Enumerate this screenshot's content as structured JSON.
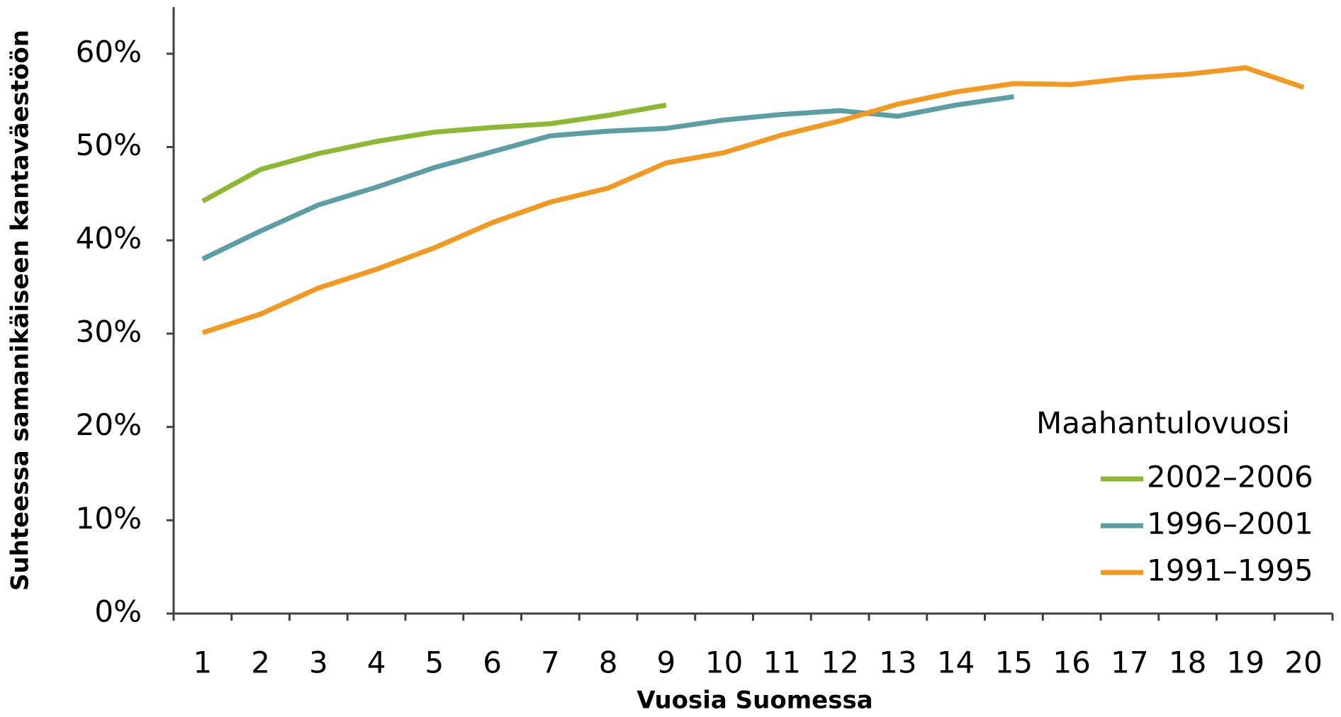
{
  "chart_data": {
    "type": "line",
    "y_axis_label": "Suhteessa samanikäiseen kantaväestöön",
    "x_axis_label": "Vuosia Suomessa",
    "legend_title": "Maahantulovuosi",
    "categories": [
      "1",
      "2",
      "3",
      "4",
      "5",
      "6",
      "7",
      "8",
      "9",
      "10",
      "11",
      "12",
      "13",
      "14",
      "15",
      "16",
      "17",
      "18",
      "19",
      "20"
    ],
    "series": [
      {
        "name": "2002–2006",
        "color": "#8cb832",
        "values": [
          44.2,
          47.6,
          49.3,
          50.6,
          51.6,
          52.1,
          52.5,
          53.4,
          54.5,
          null,
          null,
          null,
          null,
          null,
          null,
          null,
          null,
          null,
          null,
          null
        ]
      },
      {
        "name": "1996–2001",
        "color": "#5b9ea3",
        "values": [
          38.0,
          41.0,
          43.8,
          45.7,
          47.8,
          49.5,
          51.2,
          51.7,
          52.0,
          52.9,
          53.5,
          53.9,
          53.3,
          54.5,
          55.4,
          null,
          null,
          null,
          null,
          null
        ]
      },
      {
        "name": "1991–1995",
        "color": "#f4991f",
        "values": [
          30.1,
          32.1,
          34.9,
          36.9,
          39.2,
          41.9,
          44.1,
          45.6,
          48.3,
          49.4,
          51.3,
          52.8,
          54.6,
          55.9,
          56.8,
          56.7,
          57.4,
          57.8,
          58.5,
          56.4
        ]
      }
    ],
    "ylim": [
      0,
      65
    ],
    "yticks": [
      {
        "value": 0,
        "label": "0%"
      },
      {
        "value": 10,
        "label": "10%"
      },
      {
        "value": 20,
        "label": "20%"
      },
      {
        "value": 30,
        "label": "30%"
      },
      {
        "value": 40,
        "label": "40%"
      },
      {
        "value": 50,
        "label": "50%"
      },
      {
        "value": 60,
        "label": "60%"
      }
    ],
    "grid": false,
    "legend_position": "right"
  }
}
